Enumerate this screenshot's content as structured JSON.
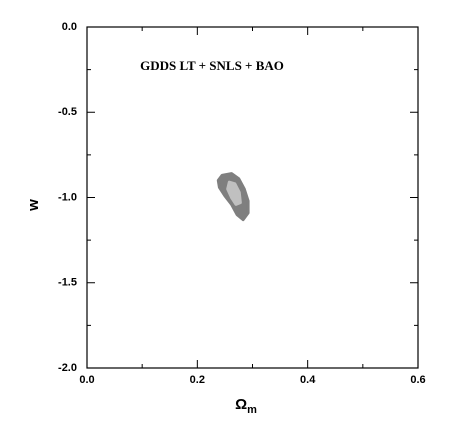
{
  "chart_data": {
    "type": "contour",
    "title": "GDDS LT + SNLS + BAO",
    "xlabel": "Ω",
    "xlabel_sub": "m",
    "ylabel": "w",
    "xlim": [
      0,
      0.6
    ],
    "ylim": [
      -2,
      0
    ],
    "xticks": [
      {
        "value": 0,
        "label": "0.0"
      },
      0.2,
      0.4,
      0.6
    ],
    "yticks": [
      {
        "value": -2,
        "label": "-2.0"
      },
      -1.5,
      {
        "value": -1,
        "label": "-1.0"
      },
      -0.5,
      {
        "value": 0,
        "label": "0.0"
      }
    ],
    "xminorticks": [
      0.1,
      0.3,
      0.5
    ],
    "yminorticks": [
      -1.75,
      -1.25,
      -0.75,
      -0.25
    ],
    "series": [
      {
        "color": "#7f7f7f",
        "x": [
          0.245,
          0.262,
          0.275,
          0.285,
          0.292,
          0.292,
          0.283,
          0.272,
          0.262,
          0.25,
          0.24,
          0.238
        ],
        "y": [
          -0.87,
          -0.86,
          -0.89,
          -0.95,
          -1.02,
          -1.09,
          -1.13,
          -1.1,
          -1.04,
          -0.99,
          -0.94,
          -0.9
        ]
      },
      {
        "color": "#c0c0c0",
        "x": [
          0.258,
          0.268,
          0.276,
          0.278,
          0.27,
          0.262,
          0.255
        ],
        "y": [
          -0.91,
          -0.92,
          -0.97,
          -1.03,
          -1.04,
          -1.0,
          -0.95
        ]
      }
    ]
  }
}
